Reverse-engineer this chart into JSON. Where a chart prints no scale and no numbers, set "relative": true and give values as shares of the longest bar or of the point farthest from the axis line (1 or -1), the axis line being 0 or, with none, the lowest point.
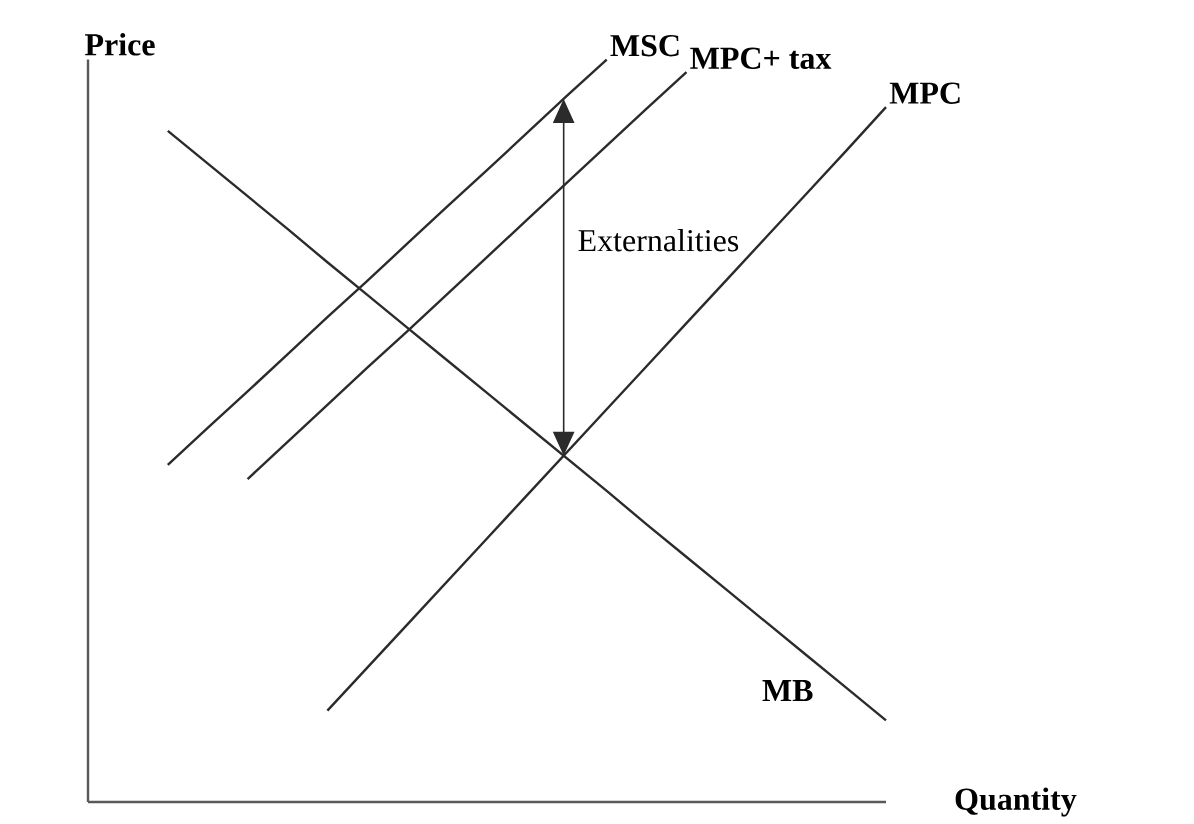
{
  "chart_data": {
    "type": "line",
    "relative": true,
    "xlabel": "Quantity",
    "ylabel": "Price",
    "categories": [
      null,
      null,
      null,
      null,
      null,
      null,
      null,
      null,
      null,
      null,
      null,
      null,
      null,
      null,
      null,
      null,
      null,
      null,
      null,
      null,
      null
    ],
    "series": [
      {
        "name": "MSC",
        "color": "#2b2b2b",
        "values": [
          null,
          null,
          0.454,
          0.504,
          0.553,
          0.603,
          0.653,
          0.702,
          0.752,
          0.802,
          0.851,
          0.901,
          0.951,
          1.0,
          null,
          null,
          null,
          null,
          null,
          null,
          null
        ]
      },
      {
        "name": "MPC+ tax",
        "color": "#2b2b2b",
        "values": [
          null,
          null,
          null,
          null,
          0.435,
          0.485,
          0.535,
          0.585,
          0.634,
          0.684,
          0.734,
          0.784,
          0.834,
          0.884,
          0.934,
          0.983,
          null,
          null,
          null,
          null,
          null
        ]
      },
      {
        "name": "MPC",
        "color": "#2b2b2b",
        "values": [
          null,
          null,
          null,
          null,
          null,
          null,
          0.123,
          0.181,
          0.239,
          0.297,
          0.355,
          0.413,
          0.471,
          0.529,
          0.587,
          0.645,
          0.703,
          0.761,
          0.819,
          0.877,
          0.936
        ]
      },
      {
        "name": "MB",
        "color": "#2b2b2b",
        "values": [
          null,
          null,
          0.904,
          0.86,
          0.816,
          0.772,
          0.727,
          0.683,
          0.639,
          0.595,
          0.551,
          0.507,
          0.463,
          0.419,
          0.374,
          0.33,
          0.286,
          0.242,
          0.198,
          0.154,
          0.11
        ]
      }
    ],
    "annotations": [
      "Externalities"
    ]
  }
}
